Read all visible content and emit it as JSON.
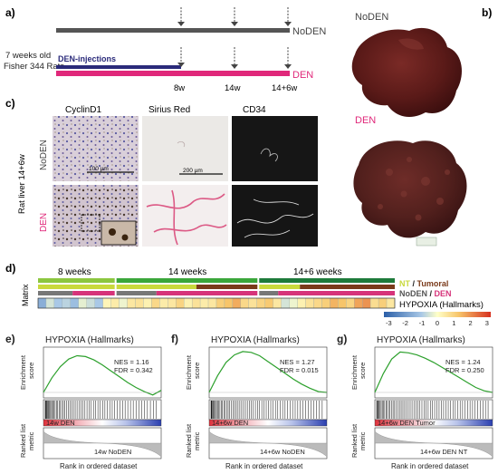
{
  "panel_a": {
    "label": "a)",
    "subject_line1": "7 weeks old",
    "subject_line2": "Fisher 344 Rats",
    "injection_label": "DEN-injections",
    "group_noden": "NoDEN",
    "group_den": "DEN",
    "time_8w": "8w",
    "time_14w": "14w",
    "time_14_6w": "14+6w"
  },
  "panel_b": {
    "label": "b)",
    "noden": "NoDEN",
    "den": "DEN"
  },
  "panel_c": {
    "label": "c)",
    "ylabel": "Rat liver 14+6w",
    "row_noden": "NoDEN",
    "row_den": "DEN",
    "col_cyclind1": "CyclinD1",
    "col_sirius": "Sirius Red",
    "col_cd34": "CD34",
    "scale1": "100 µm",
    "scale2": "200 µm"
  },
  "panel_d": {
    "label": "d)",
    "group_8w": "8 weeks",
    "group_14w": "14 weeks",
    "group_14_6w": "14+6 weeks",
    "matrix_label": "Matrix",
    "legend_nt": "NT",
    "legend_sep1": " / ",
    "legend_tumoral": "Tumoral",
    "legend_noden": "NoDEN",
    "legend_sep2": " / ",
    "legend_den": "DEN",
    "legend_hypoxia": "HYPOXIA (Hallmarks)",
    "scale_ticks": [
      "-3",
      "-2",
      "-1",
      "0",
      "1",
      "2",
      "3"
    ],
    "colors": {
      "green_8w": "#8cc63f",
      "green_14w": "#3aa63a",
      "green_14_6w": "#1d7a3a",
      "yellow": "#c9d93c",
      "brown": "#7a3a1a",
      "magenta": "#d6337a",
      "gray": "#777777"
    },
    "heat_values": [
      -1.5,
      -0.5,
      -1.0,
      -0.8,
      -1.2,
      -0.3,
      -0.6,
      -1.0,
      0.2,
      0.4,
      -0.2,
      0.5,
      0.6,
      0.3,
      0.8,
      0.4,
      0.5,
      0.9,
      0.3,
      0.6,
      0.4,
      0.5,
      1.0,
      1.2,
      1.5,
      0.8,
      0.6,
      0.9,
      1.1,
      0.5,
      -0.5,
      -0.2,
      0.3,
      0.6,
      0.8,
      1.0,
      1.4,
      1.2,
      0.9,
      1.6,
      1.8,
      0.7,
      1.0,
      0.5
    ]
  },
  "panels_efg": [
    {
      "label": "e)",
      "title": "HYPOXIA (Hallmarks)",
      "nes": "NES = 1.16",
      "fdr": "FDR = 0.342",
      "ylabel_top1": "Enrichment",
      "ylabel_top2": "score",
      "ylabel_bot1": "Ranked list",
      "ylabel_bot2": "metric",
      "pos_label": "14w DEN",
      "neg_label": "14w NoDEN",
      "xlabel": "Rank in ordered dataset"
    },
    {
      "label": "f)",
      "title": "HYPOXIA (Hallmarks)",
      "nes": "NES = 1.27",
      "fdr": "FDR = 0.015",
      "ylabel_top1": "Enrichment",
      "ylabel_top2": "score",
      "ylabel_bot1": "Ranked list",
      "ylabel_bot2": "metric",
      "pos_label": "14+6w DEN",
      "neg_label": "14+6w NoDEN",
      "xlabel": "Rank in ordered dataset"
    },
    {
      "label": "g)",
      "title": "HYPOXIA (Hallmarks)",
      "nes": "NES = 1.24",
      "fdr": "FDR = 0.250",
      "ylabel_top1": "Enrichment",
      "ylabel_top2": "score",
      "ylabel_bot1": "Ranked list",
      "ylabel_bot2": "metric",
      "pos_label": "14+6w DEN Tumor",
      "neg_label": "14+6w DEN NT",
      "xlabel": "Rank in ordered dataset"
    }
  ]
}
